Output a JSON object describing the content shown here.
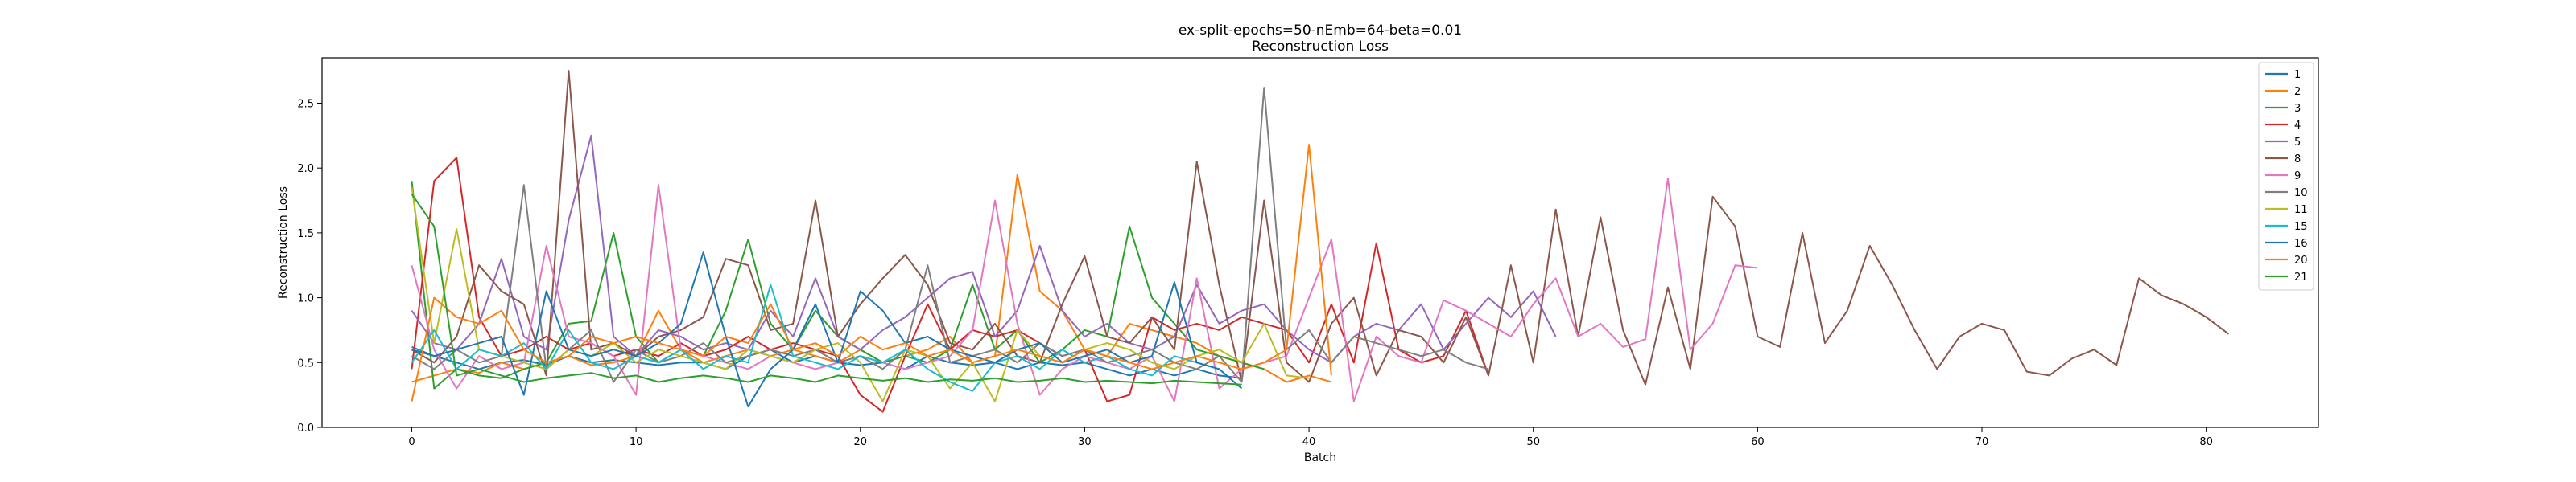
{
  "chart_data": {
    "type": "line",
    "title": "ex-split-epochs=50-nEmb=64-beta=0.01",
    "subtitle": "Reconstruction Loss",
    "xlabel": "Batch",
    "ylabel": "Reconstruction Loss",
    "xlim": [
      -4,
      85
    ],
    "ylim": [
      0,
      2.85
    ],
    "xticks": [
      0,
      10,
      20,
      30,
      40,
      50,
      60,
      70,
      80
    ],
    "yticks": [
      0.0,
      0.5,
      1.0,
      1.5,
      2.0,
      2.5
    ],
    "ytick_labels": [
      "0.0",
      "0.5",
      "1.0",
      "1.5",
      "2.0",
      "2.5"
    ],
    "grid": false,
    "legend_position": "top-right",
    "series": [
      {
        "name": "1",
        "color": "#1f77b4",
        "values": [
          0.62,
          0.55,
          0.5,
          0.45,
          0.5,
          0.52,
          0.48,
          0.55,
          0.5,
          0.52,
          0.5,
          0.48,
          0.5,
          0.5,
          0.45,
          0.55,
          0.6,
          0.5,
          0.55,
          0.5,
          0.48,
          0.5,
          0.45,
          0.55,
          0.5,
          0.48,
          0.5,
          0.45,
          0.5,
          0.48,
          0.5,
          0.45,
          0.4,
          0.45,
          0.4,
          0.45,
          0.4,
          0.38
        ]
      },
      {
        "name": "2",
        "color": "#ff7f0e",
        "values": [
          0.35,
          0.4,
          0.45,
          0.42,
          0.5,
          0.45,
          0.5,
          0.55,
          0.48,
          0.5,
          0.55,
          0.9,
          0.6,
          0.5,
          0.55,
          0.6,
          0.55,
          0.6,
          0.55,
          0.5,
          0.6,
          0.5,
          0.55,
          0.6,
          0.7,
          0.5,
          0.55,
          1.95,
          1.05,
          0.9,
          0.6,
          0.55,
          0.8,
          0.75,
          0.7,
          0.65,
          0.55,
          0.5,
          0.45,
          0.35,
          0.4,
          0.35
        ]
      },
      {
        "name": "3",
        "color": "#2ca02c",
        "values": [
          1.9,
          0.3,
          0.45,
          0.4,
          0.38,
          0.45,
          0.5,
          0.8,
          0.82,
          1.5,
          0.7,
          0.5,
          0.6,
          0.55,
          0.9,
          1.45,
          0.8,
          0.6,
          0.9,
          0.7,
          0.6,
          0.5,
          0.55,
          0.5,
          0.6,
          1.1,
          0.6,
          0.75,
          0.5,
          0.6,
          0.75,
          0.7,
          1.55,
          1.0,
          0.8,
          0.6,
          0.55,
          0.5,
          0.45
        ]
      },
      {
        "name": "4",
        "color": "#d62728",
        "values": [
          0.45,
          1.9,
          2.08,
          0.85,
          0.55,
          0.6,
          0.7,
          0.6,
          0.65,
          0.55,
          0.6,
          0.55,
          0.65,
          0.55,
          0.6,
          0.7,
          0.6,
          0.65,
          0.6,
          0.55,
          0.25,
          0.12,
          0.55,
          0.95,
          0.6,
          0.75,
          0.7,
          0.75,
          0.65,
          0.55,
          0.6,
          0.2,
          0.25,
          0.85,
          0.75,
          0.8,
          0.75,
          0.85,
          0.8,
          0.75,
          0.5,
          0.95,
          0.5,
          1.42,
          0.6,
          0.5,
          0.55,
          0.9,
          0.4
        ]
      },
      {
        "name": "5",
        "color": "#9467bd",
        "values": [
          0.9,
          0.65,
          0.6,
          0.8,
          1.3,
          0.7,
          0.6,
          1.6,
          2.25,
          0.7,
          0.55,
          0.75,
          0.7,
          0.6,
          0.65,
          0.6,
          0.9,
          0.7,
          1.15,
          0.7,
          0.6,
          0.75,
          0.85,
          1.0,
          1.15,
          1.2,
          0.7,
          0.9,
          1.4,
          0.9,
          0.7,
          0.8,
          0.65,
          0.6,
          0.7,
          1.1,
          0.8,
          0.9,
          0.95,
          0.75,
          0.6,
          0.5,
          0.7,
          0.8,
          0.75,
          0.95,
          0.6,
          0.8,
          1.0,
          0.85,
          1.05,
          0.7
        ]
      },
      {
        "name": "8",
        "color": "#8c564b",
        "values": [
          0.6,
          0.5,
          0.7,
          1.25,
          1.05,
          0.95,
          0.4,
          2.75,
          0.6,
          0.65,
          0.55,
          0.7,
          0.75,
          0.85,
          1.3,
          1.25,
          0.75,
          0.8,
          1.75,
          0.7,
          0.95,
          1.15,
          1.33,
          1.1,
          0.65,
          0.6,
          0.8,
          0.55,
          0.5,
          0.95,
          1.32,
          0.7,
          0.65,
          0.85,
          0.6,
          2.05,
          1.1,
          0.35,
          1.75,
          0.5,
          0.35,
          0.8,
          1.0,
          0.4,
          0.75,
          0.7,
          0.5,
          0.85,
          0.4,
          1.25,
          0.5,
          1.68,
          0.7,
          1.62,
          0.75,
          0.33,
          1.08,
          0.45,
          1.78,
          1.55,
          0.7,
          0.62,
          1.5,
          0.65,
          0.9,
          1.4,
          1.1,
          0.75,
          0.45,
          0.7,
          0.8,
          0.75,
          0.43,
          0.4,
          0.53,
          0.6,
          0.48,
          1.15,
          1.02,
          0.95,
          0.85,
          0.72
        ]
      },
      {
        "name": "9",
        "color": "#e377c2",
        "values": [
          1.25,
          0.6,
          0.3,
          0.55,
          0.45,
          0.5,
          1.4,
          0.7,
          0.65,
          0.55,
          0.25,
          1.87,
          0.6,
          0.55,
          0.5,
          0.45,
          0.55,
          0.5,
          0.45,
          0.5,
          0.55,
          0.5,
          0.45,
          0.5,
          0.55,
          0.75,
          1.75,
          0.8,
          0.25,
          0.45,
          0.55,
          0.5,
          0.45,
          0.55,
          0.2,
          1.15,
          0.3,
          0.45,
          0.5,
          0.55,
          1.0,
          1.45,
          0.2,
          0.7,
          0.55,
          0.5,
          0.98,
          0.9,
          0.8,
          0.7,
          0.95,
          1.15,
          0.7,
          0.8,
          0.62,
          0.68,
          1.92,
          0.6,
          0.8,
          1.25,
          1.23
        ]
      },
      {
        "name": "10",
        "color": "#7f7f7f",
        "values": [
          0.55,
          0.45,
          0.6,
          0.5,
          0.55,
          1.87,
          0.45,
          0.6,
          0.75,
          0.35,
          0.6,
          0.5,
          0.55,
          0.65,
          0.5,
          0.55,
          0.6,
          0.55,
          0.6,
          0.5,
          0.55,
          0.45,
          0.6,
          1.25,
          0.5,
          0.55,
          0.6,
          0.5,
          0.65,
          0.55,
          0.6,
          0.5,
          0.55,
          0.6,
          0.5,
          0.45,
          0.55,
          0.35,
          2.62,
          0.6,
          0.75,
          0.5,
          0.7,
          0.65,
          0.6,
          0.55,
          0.6,
          0.5,
          0.45
        ]
      },
      {
        "name": "11",
        "color": "#bcbd22",
        "values": [
          1.85,
          0.65,
          1.53,
          0.6,
          0.55,
          0.5,
          0.45,
          0.6,
          0.55,
          0.65,
          0.5,
          0.6,
          0.55,
          0.5,
          0.45,
          0.6,
          0.55,
          0.5,
          0.6,
          0.65,
          0.5,
          0.2,
          0.6,
          0.55,
          0.3,
          0.5,
          0.2,
          0.75,
          0.55,
          0.5,
          0.6,
          0.65,
          0.6,
          0.5,
          0.45,
          0.55,
          0.6,
          0.5,
          0.8,
          0.4,
          0.38
        ]
      },
      {
        "name": "15",
        "color": "#17becf",
        "values": [
          0.5,
          0.75,
          0.45,
          0.6,
          0.55,
          0.65,
          0.45,
          0.75,
          0.5,
          0.45,
          0.55,
          0.5,
          0.6,
          0.45,
          0.55,
          0.5,
          1.1,
          0.55,
          0.5,
          0.45,
          0.55,
          0.5,
          0.6,
          0.45,
          0.35,
          0.28,
          0.5,
          0.55,
          0.45,
          0.6,
          0.5,
          0.55,
          0.45,
          0.4,
          0.55,
          0.5,
          0.45
        ]
      },
      {
        "name": "16",
        "color": "#1f77b4",
        "values": [
          0.6,
          0.55,
          0.6,
          0.65,
          0.7,
          0.25,
          1.05,
          0.6,
          0.55,
          0.6,
          0.55,
          0.65,
          0.8,
          1.35,
          0.7,
          0.16,
          0.45,
          0.6,
          0.95,
          0.5,
          1.05,
          0.9,
          0.65,
          0.7,
          0.6,
          0.55,
          0.5,
          0.6,
          0.65,
          0.5,
          0.55,
          0.6,
          0.5,
          0.55,
          1.12,
          0.5,
          0.45,
          0.3
        ]
      },
      {
        "name": "20",
        "color": "#ff7f0e",
        "values": [
          0.2,
          1.0,
          0.85,
          0.8,
          0.9,
          0.6,
          0.5,
          0.55,
          0.7,
          0.65,
          0.7,
          0.65,
          0.6,
          0.55,
          0.7,
          0.65,
          0.95,
          0.6,
          0.65,
          0.55,
          0.7,
          0.6,
          0.65,
          0.55,
          0.6,
          0.5,
          0.55,
          0.6,
          0.55,
          0.5,
          0.6,
          0.55,
          0.5,
          0.45,
          0.5,
          0.55,
          0.5,
          0.45,
          0.5,
          0.6,
          2.18,
          0.4
        ]
      },
      {
        "name": "21",
        "color": "#2ca02c",
        "values": [
          1.8,
          1.55,
          0.4,
          0.45,
          0.4,
          0.35,
          0.38,
          0.4,
          0.42,
          0.38,
          0.4,
          0.35,
          0.38,
          0.4,
          0.38,
          0.35,
          0.4,
          0.38,
          0.35,
          0.4,
          0.38,
          0.36,
          0.38,
          0.35,
          0.37,
          0.36,
          0.38,
          0.35,
          0.36,
          0.38,
          0.35,
          0.36,
          0.35,
          0.34,
          0.36,
          0.35,
          0.34,
          0.33
        ]
      }
    ]
  }
}
